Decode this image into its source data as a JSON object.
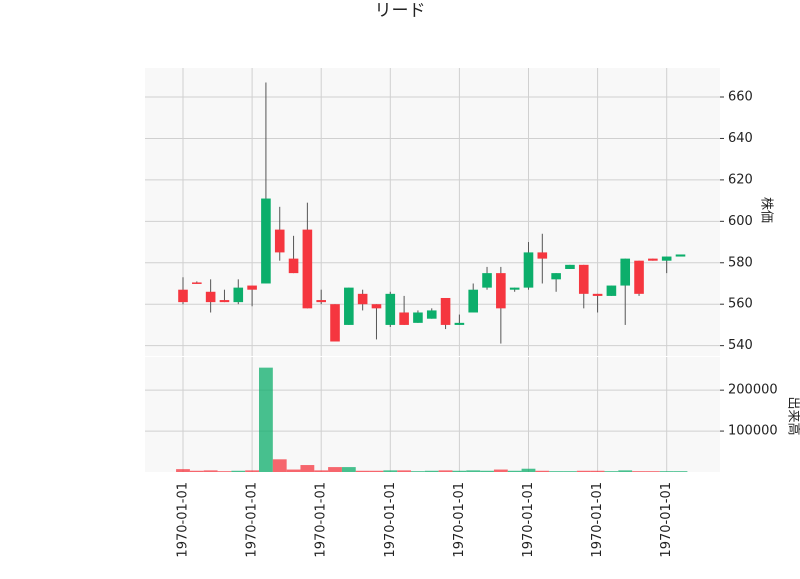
{
  "chart_data": {
    "type": "candlestick",
    "title": "リード",
    "categories": [
      "1970-01-01",
      null,
      null,
      null,
      null,
      "1970-01-01",
      null,
      null,
      null,
      null,
      "1970-01-01",
      null,
      null,
      null,
      null,
      "1970-01-01",
      null,
      null,
      null,
      null,
      "1970-01-01",
      null,
      null,
      null,
      null,
      "1970-01-01",
      null,
      null,
      null,
      null,
      "1970-01-01",
      null,
      null,
      null,
      null,
      "1970-01-01",
      null
    ],
    "open": [
      567,
      570.5,
      566,
      562,
      561,
      569,
      570,
      596,
      582,
      596,
      562,
      560,
      550,
      565,
      560,
      550,
      556,
      551,
      553,
      563,
      550,
      556,
      568,
      575,
      567,
      568,
      585,
      572,
      577,
      579,
      565,
      564,
      569,
      581,
      582,
      581,
      583
    ],
    "high": [
      573,
      571,
      572,
      567,
      572,
      569,
      667,
      607,
      593,
      609,
      567,
      560,
      568,
      567,
      560,
      566,
      564,
      557,
      558,
      563,
      555,
      570,
      578,
      578,
      568,
      590,
      594,
      575,
      579,
      579,
      565,
      569,
      582,
      581,
      582,
      583,
      584
    ],
    "low": [
      560,
      570,
      556,
      561,
      560,
      559,
      570,
      581,
      575,
      558,
      560,
      542,
      550,
      557,
      543,
      549,
      550,
      551,
      553,
      548,
      550,
      556,
      567,
      541,
      566,
      567,
      570,
      566,
      577,
      558,
      556,
      564,
      550,
      564,
      581,
      575,
      583
    ],
    "close": [
      561,
      570,
      561,
      561,
      568,
      567,
      611,
      585,
      575,
      558,
      561,
      542,
      568,
      560,
      558,
      565,
      550,
      556,
      557,
      550,
      551,
      567,
      575,
      558,
      568,
      585,
      582,
      575,
      579,
      565,
      564,
      569,
      582,
      565,
      581,
      583,
      584
    ],
    "volume": [
      7000,
      3000,
      4000,
      2000,
      3000,
      4000,
      255000,
      31000,
      6000,
      17000,
      4000,
      12000,
      12000,
      3000,
      3000,
      4000,
      4000,
      2000,
      3000,
      4000,
      3000,
      4000,
      3000,
      6000,
      3000,
      8000,
      3000,
      2000,
      2000,
      3000,
      3000,
      2000,
      4000,
      2000,
      2000,
      2000,
      2000
    ],
    "ylim": [
      535,
      674
    ],
    "yticks": [
      540,
      560,
      580,
      600,
      620,
      640,
      660
    ],
    "y_label": "株価",
    "volume_ylim": [
      0,
      281000
    ],
    "volume_yticks": [
      100000,
      200000
    ],
    "volume_label": "出来高",
    "up_color": "#0cae6b",
    "down_color": "#f5363f",
    "grid": true
  }
}
